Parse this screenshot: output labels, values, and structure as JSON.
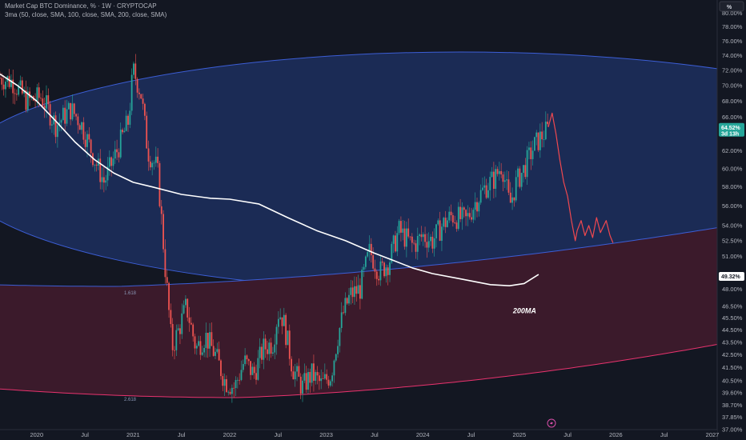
{
  "header": {
    "title": "Market Cap BTC Dominance, % · 1W · CRYPTOCAP",
    "indicator": "3ma (50, close, SMA, 100, close, SMA, 200, close, SMA)",
    "scale_mode": "%"
  },
  "chart_data": {
    "type": "line",
    "ylim": [
      37.0,
      82.0
    ],
    "y_ticks": [
      37.0,
      37.85,
      38.7,
      39.6,
      40.5,
      41.5,
      42.5,
      43.5,
      44.5,
      45.5,
      46.5,
      48.0,
      49.0,
      51.0,
      52.5,
      54.0,
      56.0,
      58.0,
      60.0,
      62.0,
      64.0,
      66.0,
      68.0,
      70.0,
      72.0,
      74.0,
      76.0,
      78.0,
      80.0
    ],
    "y_tick_labels": [
      "37.00%",
      "37.85%",
      "38.70%",
      "39.60%",
      "40.50%",
      "41.50%",
      "42.50%",
      "43.50%",
      "44.50%",
      "45.50%",
      "46.50%",
      "48.00%",
      "49.00%",
      "51.00%",
      "52.50%",
      "54.00%",
      "56.00%",
      "58.00%",
      "60.00%",
      "62.00%",
      "64.00%",
      "66.00%",
      "68.00%",
      "70.00%",
      "72.00%",
      "74.00%",
      "76.00%",
      "78.00%",
      "80.00%"
    ],
    "x_labels": [
      {
        "t": 2020.0,
        "label": "2020"
      },
      {
        "t": 2020.5,
        "label": "Jul"
      },
      {
        "t": 2021.0,
        "label": "2021"
      },
      {
        "t": 2021.5,
        "label": "Jul"
      },
      {
        "t": 2022.0,
        "label": "2022"
      },
      {
        "t": 2022.5,
        "label": "Jul"
      },
      {
        "t": 2023.0,
        "label": "2023"
      },
      {
        "t": 2023.5,
        "label": "Jul"
      },
      {
        "t": 2024.0,
        "label": "2024"
      },
      {
        "t": 2024.5,
        "label": "Jul"
      },
      {
        "t": 2025.0,
        "label": "2025"
      },
      {
        "t": 2025.5,
        "label": "Jul"
      },
      {
        "t": 2026.0,
        "label": "2026"
      },
      {
        "t": 2026.5,
        "label": "Jul"
      },
      {
        "t": 2027.0,
        "label": "2027"
      }
    ],
    "xlim": [
      2019.62,
      2027.05
    ],
    "series": [
      {
        "kind": "candles",
        "up_color": "#26a69a",
        "down_color": "#ef5350",
        "keypoints": [
          [
            2019.62,
            71.0
          ],
          [
            2019.75,
            70.5
          ],
          [
            2019.9,
            68.0
          ],
          [
            2020.05,
            68.5
          ],
          [
            2020.2,
            65.0
          ],
          [
            2020.35,
            67.0
          ],
          [
            2020.45,
            65.5
          ],
          [
            2020.6,
            61.0
          ],
          [
            2020.7,
            58.5
          ],
          [
            2020.85,
            62.5
          ],
          [
            2020.95,
            65.5
          ],
          [
            2021.0,
            72.0
          ],
          [
            2021.08,
            69.0
          ],
          [
            2021.15,
            62.0
          ],
          [
            2021.25,
            60.0
          ],
          [
            2021.33,
            50.0
          ],
          [
            2021.4,
            43.0
          ],
          [
            2021.47,
            44.5
          ],
          [
            2021.55,
            46.5
          ],
          [
            2021.65,
            43.0
          ],
          [
            2021.75,
            44.0
          ],
          [
            2021.85,
            42.5
          ],
          [
            2021.95,
            40.5
          ],
          [
            2022.05,
            40.0
          ],
          [
            2022.15,
            42.0
          ],
          [
            2022.25,
            41.0
          ],
          [
            2022.35,
            43.0
          ],
          [
            2022.45,
            43.5
          ],
          [
            2022.5,
            46.0
          ],
          [
            2022.55,
            45.5
          ],
          [
            2022.65,
            41.5
          ],
          [
            2022.75,
            40.0
          ],
          [
            2022.85,
            41.0
          ],
          [
            2022.95,
            40.2
          ],
          [
            2023.05,
            41.0
          ],
          [
            2023.12,
            44.0
          ],
          [
            2023.18,
            46.0
          ],
          [
            2023.25,
            47.5
          ],
          [
            2023.35,
            48.0
          ],
          [
            2023.45,
            51.5
          ],
          [
            2023.55,
            49.5
          ],
          [
            2023.65,
            50.5
          ],
          [
            2023.75,
            53.5
          ],
          [
            2023.9,
            52.0
          ],
          [
            2024.0,
            53.0
          ],
          [
            2024.1,
            52.5
          ],
          [
            2024.2,
            54.0
          ],
          [
            2024.3,
            55.0
          ],
          [
            2024.45,
            54.5
          ],
          [
            2024.55,
            56.5
          ],
          [
            2024.65,
            58.0
          ],
          [
            2024.75,
            59.0
          ],
          [
            2024.82,
            60.5
          ],
          [
            2024.9,
            56.0
          ],
          [
            2024.97,
            58.5
          ],
          [
            2025.05,
            60.0
          ],
          [
            2025.15,
            62.5
          ],
          [
            2025.25,
            64.0
          ],
          [
            2025.3,
            64.52
          ]
        ]
      },
      {
        "name": "200MA",
        "color": "#ffffff",
        "points": [
          [
            2019.62,
            71.5
          ],
          [
            2019.8,
            70.0
          ],
          [
            2020.0,
            68.0
          ],
          [
            2020.2,
            65.5
          ],
          [
            2020.4,
            63.0
          ],
          [
            2020.6,
            61.0
          ],
          [
            2020.8,
            59.5
          ],
          [
            2021.0,
            58.5
          ],
          [
            2021.2,
            58.0
          ],
          [
            2021.5,
            57.2
          ],
          [
            2021.8,
            56.8
          ],
          [
            2022.0,
            56.7
          ],
          [
            2022.3,
            56.2
          ],
          [
            2022.6,
            54.8
          ],
          [
            2022.9,
            53.5
          ],
          [
            2023.2,
            52.5
          ],
          [
            2023.5,
            51.3
          ],
          [
            2023.7,
            50.6
          ],
          [
            2023.9,
            49.9
          ],
          [
            2024.1,
            49.4
          ],
          [
            2024.4,
            48.9
          ],
          [
            2024.7,
            48.4
          ],
          [
            2024.9,
            48.3
          ],
          [
            2025.05,
            48.5
          ],
          [
            2025.2,
            49.32
          ]
        ]
      },
      {
        "name": "projection",
        "color": "#f0484f",
        "points": [
          [
            2025.3,
            64.8
          ],
          [
            2025.34,
            66.5
          ],
          [
            2025.38,
            64.0
          ],
          [
            2025.42,
            61.0
          ],
          [
            2025.46,
            58.5
          ],
          [
            2025.5,
            57.0
          ],
          [
            2025.54,
            54.5
          ],
          [
            2025.58,
            52.5
          ],
          [
            2025.6,
            53.5
          ],
          [
            2025.64,
            54.5
          ],
          [
            2025.68,
            53.0
          ],
          [
            2025.72,
            54.0
          ],
          [
            2025.76,
            52.8
          ],
          [
            2025.8,
            54.8
          ],
          [
            2025.84,
            53.3
          ],
          [
            2025.9,
            54.5
          ],
          [
            2025.94,
            53.0
          ],
          [
            2025.97,
            52.3
          ]
        ]
      }
    ],
    "last_price": {
      "value": 64.52,
      "label": "64.52%",
      "sublabel": "3d 13h",
      "color": "#26a69a"
    },
    "ma_price": {
      "value": 49.32,
      "label": "49.32%",
      "color": "#ffffff"
    },
    "fib_labels": [
      "1.618",
      "2.618"
    ],
    "annotations": [
      {
        "text": "200MA",
        "x": 2025.05,
        "y": 47.0
      }
    ],
    "colors": {
      "blue_zone": "#1b2b55",
      "red_zone": "#3b1a2b",
      "blue_edge": "#3c5ed6",
      "red_edge": "#e8336e"
    },
    "grid": false
  }
}
